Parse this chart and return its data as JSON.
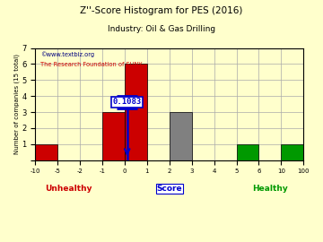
{
  "title": "Z''-Score Histogram for PES (2016)",
  "subtitle": "Industry: Oil & Gas Drilling",
  "watermark1": "©www.textbiz.org",
  "watermark2": "The Research Foundation of SUNY",
  "xlabel": "Score",
  "ylabel": "Number of companies (15 total)",
  "bin_labels": [
    "-10",
    "-5",
    "-2",
    "-1",
    "0",
    "1",
    "2",
    "3",
    "4",
    "5",
    "6",
    "10",
    "100"
  ],
  "bar_heights": [
    1,
    0,
    0,
    3,
    6,
    0,
    3,
    0,
    0,
    1,
    0,
    1
  ],
  "bar_colors": [
    "#cc0000",
    "#cc0000",
    "#cc0000",
    "#cc0000",
    "#cc0000",
    "#cc0000",
    "#808080",
    "#808080",
    "#808080",
    "#009900",
    "#009900",
    "#009900"
  ],
  "pes_score_bin": 4.1083,
  "annotation_text": "0.1083",
  "annotation_color": "#0000cc",
  "ylim": [
    0,
    7
  ],
  "yticks": [
    0,
    1,
    2,
    3,
    4,
    5,
    6,
    7
  ],
  "unhealthy_label": "Unhealthy",
  "healthy_label": "Healthy",
  "unhealthy_color": "#cc0000",
  "healthy_color": "#009900",
  "score_label_color": "#0000cc",
  "bg_color": "#ffffcc",
  "grid_color": "#aaaaaa",
  "title_color": "#000000",
  "subtitle_color": "#000000"
}
